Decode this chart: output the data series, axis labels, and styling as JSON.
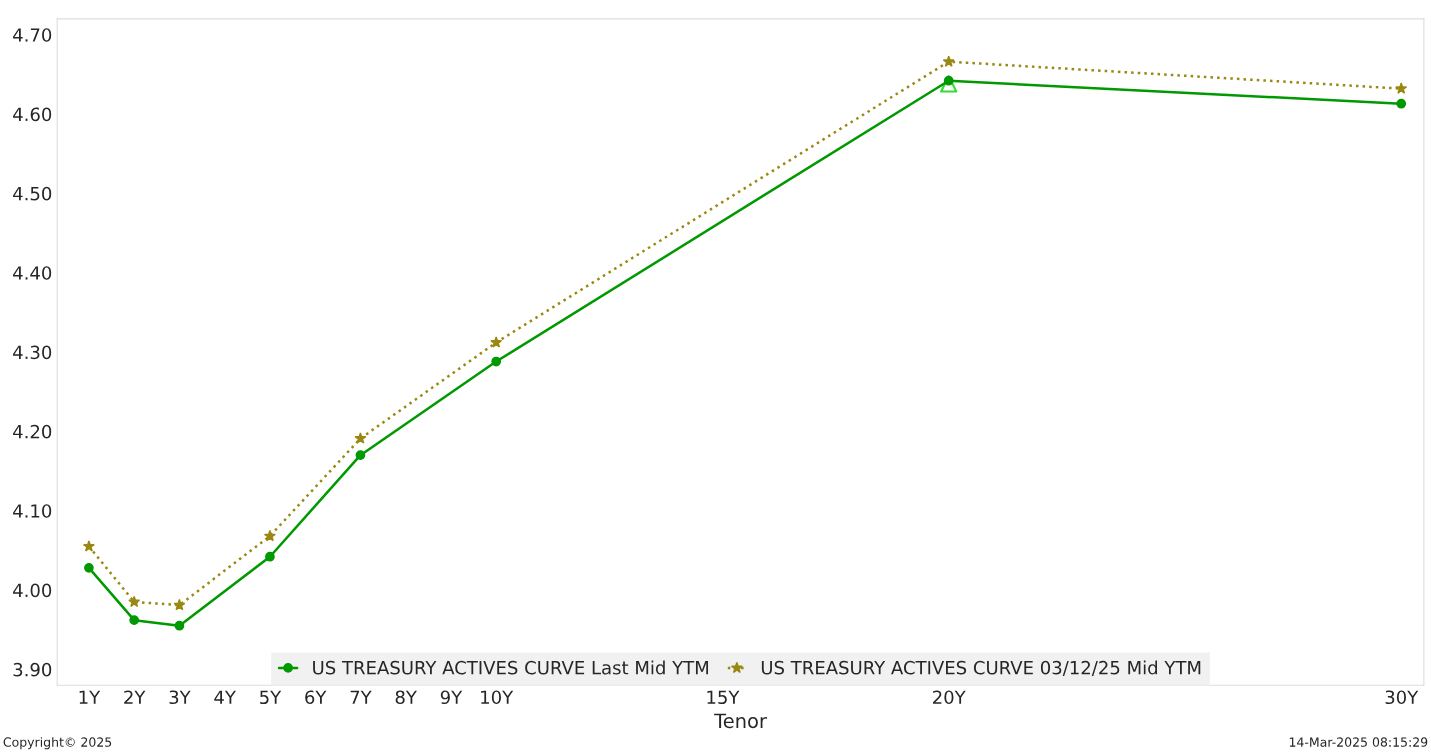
{
  "chart_data": {
    "type": "line",
    "xlabel": "Tenor",
    "x": [
      1,
      2,
      3,
      5,
      7,
      10,
      20,
      30
    ],
    "series": [
      {
        "name": "US TREASURY ACTIVES CURVE Last Mid YTM",
        "color": "#009900",
        "marker": "circle",
        "line_style": "solid",
        "values": [
          4.028,
          3.962,
          3.955,
          4.042,
          4.17,
          4.288,
          4.642,
          4.613
        ]
      },
      {
        "name": "US TREASURY ACTIVES CURVE 03/12/25 Mid YTM",
        "color": "#998811",
        "marker": "star",
        "line_style": "dotted",
        "values": [
          4.055,
          3.985,
          3.981,
          4.068,
          4.191,
          4.312,
          4.666,
          4.632
        ]
      },
      {
        "type": "scatter",
        "color": "#33dd33",
        "marker": "triangle",
        "x": [
          20
        ],
        "values": [
          4.638
        ]
      }
    ],
    "xlim": [
      0.3,
      30.5
    ],
    "xticks": [
      {
        "value": 1,
        "label": "1Y"
      },
      {
        "value": 2,
        "label": "2Y"
      },
      {
        "value": 3,
        "label": "3Y"
      },
      {
        "value": 4,
        "label": "4Y"
      },
      {
        "value": 5,
        "label": "5Y"
      },
      {
        "value": 6,
        "label": "6Y"
      },
      {
        "value": 7,
        "label": "7Y"
      },
      {
        "value": 8,
        "label": "8Y"
      },
      {
        "value": 9,
        "label": "9Y"
      },
      {
        "value": 10,
        "label": "10Y"
      },
      {
        "value": 15,
        "label": "15Y"
      },
      {
        "value": 20,
        "label": "20Y"
      },
      {
        "value": 30,
        "label": "30Y"
      }
    ],
    "ylim": [
      3.88,
      4.72
    ],
    "yticks": [
      {
        "value": 3.9,
        "label": "3.90"
      },
      {
        "value": 4.0,
        "label": "4.00"
      },
      {
        "value": 4.1,
        "label": "4.10"
      },
      {
        "value": 4.2,
        "label": "4.20"
      },
      {
        "value": 4.3,
        "label": "4.30"
      },
      {
        "value": 4.4,
        "label": "4.40"
      },
      {
        "value": 4.5,
        "label": "4.50"
      },
      {
        "value": 4.6,
        "label": "4.60"
      },
      {
        "value": 4.7,
        "label": "4.70"
      }
    ],
    "grid": false,
    "legend": "bottom",
    "annotations": [
      "Copyright© 2025",
      "14-Mar-2025 08:15:29"
    ]
  }
}
